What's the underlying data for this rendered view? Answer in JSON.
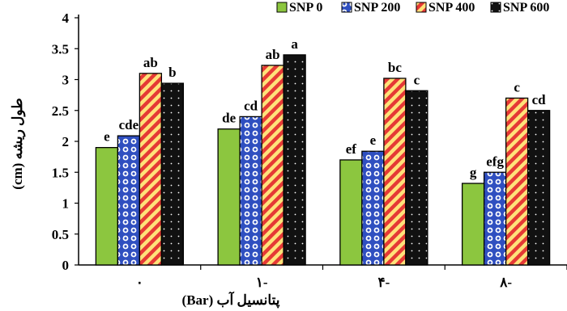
{
  "chart_data": {
    "type": "bar",
    "title": "",
    "xlabel": "پتانسیل آب (Bar)",
    "ylabel": "طول ریشه (cm)",
    "ylim": [
      0,
      4
    ],
    "yticks": [
      "0",
      "0.5",
      "1",
      "1.5",
      "2",
      "2.5",
      "3",
      "3.5",
      "4"
    ],
    "grid": false,
    "legend_position": "top-right",
    "categories": [
      "۰",
      "۱-",
      "۴-",
      "۸-"
    ],
    "series": [
      {
        "name": "SNP 0",
        "values": [
          1.9,
          2.2,
          1.7,
          1.32
        ],
        "labels": [
          "e",
          "de",
          "ef",
          "g"
        ],
        "color": "#8CC63F",
        "pattern": "solid"
      },
      {
        "name": "SNP 200",
        "values": [
          2.09,
          2.4,
          1.84,
          1.5
        ],
        "labels": [
          "cde",
          "cd",
          "e",
          "efg"
        ],
        "color": "#3A5BC7",
        "pattern": "circles"
      },
      {
        "name": "SNP 400",
        "values": [
          3.1,
          3.23,
          3.02,
          2.7
        ],
        "labels": [
          "ab",
          "ab",
          "bc",
          "c"
        ],
        "color": "#E53935",
        "pattern": "stripes"
      },
      {
        "name": "SNP 600",
        "values": [
          2.94,
          3.4,
          2.82,
          2.5
        ],
        "labels": [
          "b",
          "a",
          "c",
          "cd"
        ],
        "color": "#111111",
        "pattern": "dots"
      }
    ]
  }
}
